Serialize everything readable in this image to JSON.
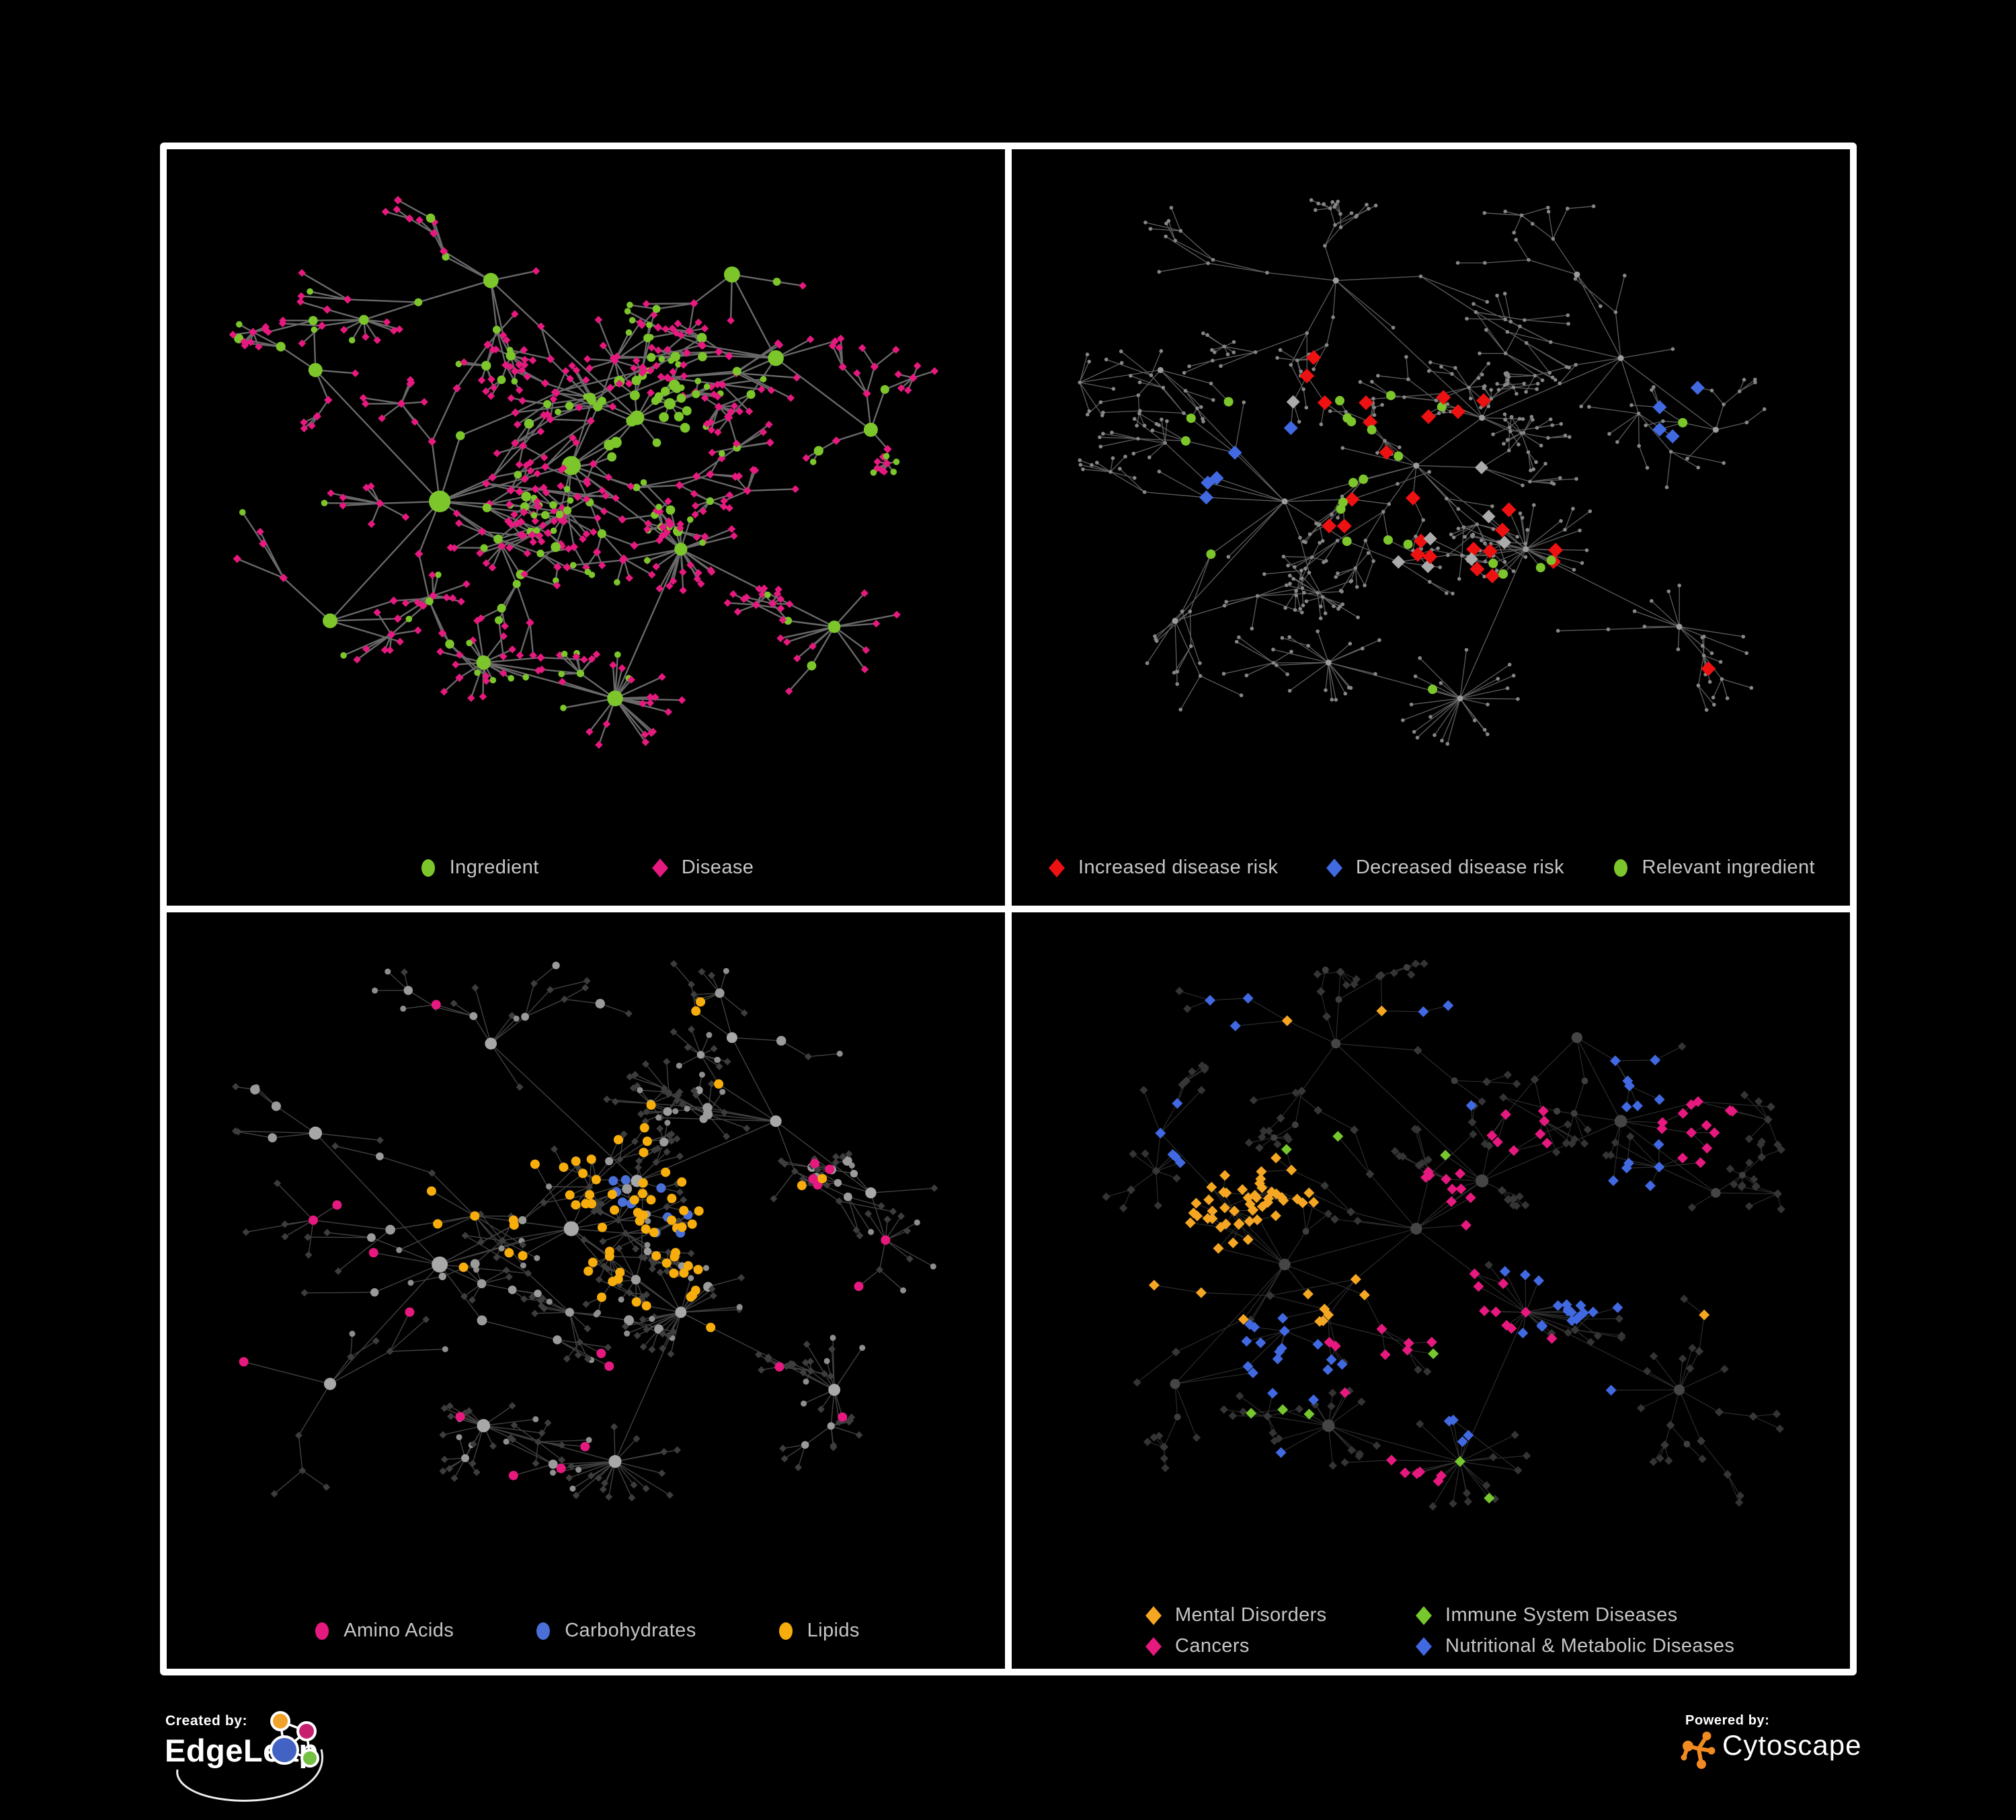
{
  "figure": {
    "background": "#000000",
    "panel_border": "#FFFFFF",
    "legend_text_color": "#C6C6C6"
  },
  "panels": [
    {
      "id": "ingredient-disease-network",
      "legend_layout": "row-center-2",
      "legend": [
        {
          "label": "Ingredient",
          "shape": "circle",
          "color": "#7CC62C"
        },
        {
          "label": "Disease",
          "shape": "diamond",
          "color": "#E6197F"
        }
      ]
    },
    {
      "id": "disease-risk-network",
      "legend_layout": "row-spread",
      "legend": [
        {
          "label": "Increased disease risk",
          "shape": "diamond",
          "color": "#EE1111"
        },
        {
          "label": "Decreased disease risk",
          "shape": "diamond",
          "color": "#4169E1"
        },
        {
          "label": "Relevant ingredient",
          "shape": "circle",
          "color": "#7CC62C"
        }
      ]
    },
    {
      "id": "nutrient-class-network",
      "legend_layout": "row-center-3",
      "legend": [
        {
          "label": "Amino Acids",
          "shape": "circle",
          "color": "#E6197F"
        },
        {
          "label": "Carbohydrates",
          "shape": "circle",
          "color": "#4A70D8"
        },
        {
          "label": "Lipids",
          "shape": "circle",
          "color": "#F7AE0C"
        }
      ]
    },
    {
      "id": "disease-class-network",
      "legend_layout": "grid-2col",
      "legend": [
        {
          "label": "Mental Disorders",
          "shape": "diamond",
          "color": "#F5A623"
        },
        {
          "label": "Immune System Diseases",
          "shape": "diamond",
          "color": "#76C82E"
        },
        {
          "label": "Cancers",
          "shape": "diamond",
          "color": "#E6197F"
        },
        {
          "label": "Nutritional & Metabolic Diseases",
          "shape": "diamond",
          "color": "#4169E1"
        }
      ]
    }
  ],
  "footer": {
    "created_by": {
      "label": "Created by:",
      "brand": "EdgeLeap"
    },
    "powered_by": {
      "label": "Powered by:",
      "brand": "Cytoscape"
    },
    "edgeleap_colors": {
      "orange": "#F0A32A",
      "magenta": "#C6206E",
      "blue": "#4263C4",
      "green": "#74C043"
    },
    "cytoscape_color": "#F18A21"
  }
}
